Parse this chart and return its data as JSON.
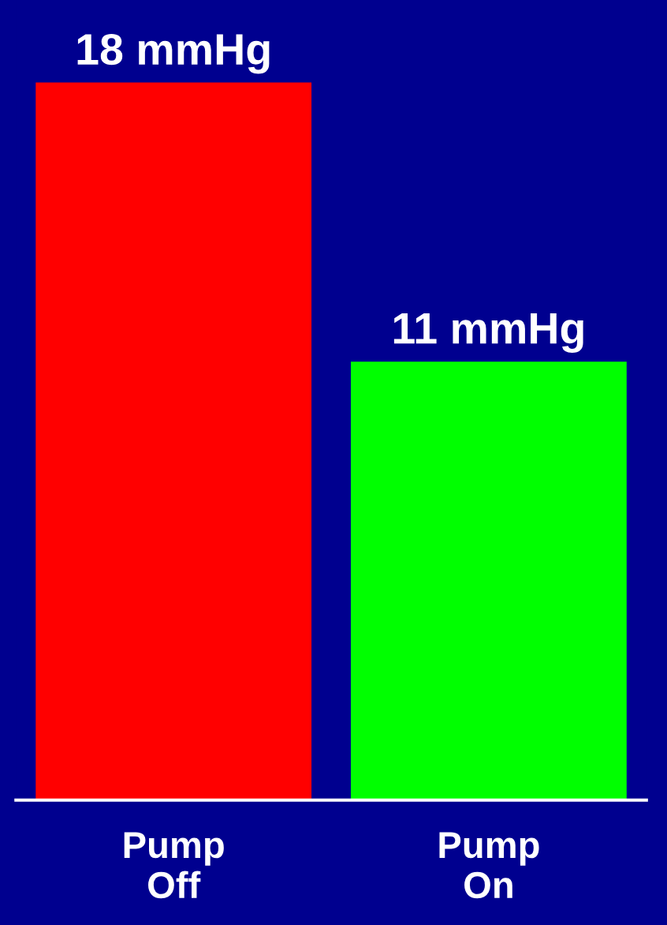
{
  "chart_data": {
    "type": "bar",
    "categories": [
      "Pump\nOff",
      "Pump\nOn"
    ],
    "values": [
      18,
      11
    ],
    "colors": [
      "#ff0000",
      "#00ff00"
    ],
    "value_labels": [
      "18 mmHg",
      "11 mmHg"
    ],
    "grid": false,
    "legend": false,
    "tick_labels": "x"
  }
}
